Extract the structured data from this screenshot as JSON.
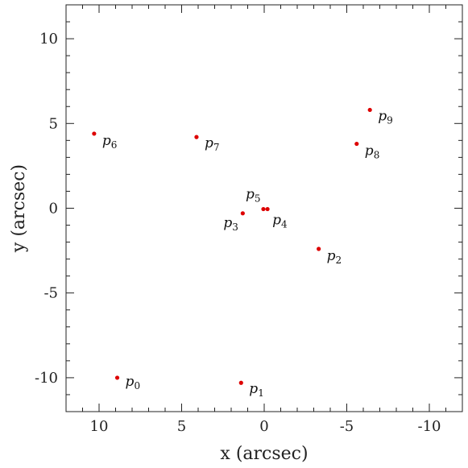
{
  "chart_data": {
    "type": "scatter",
    "xlabel": "x (arcsec)",
    "ylabel": "y (arcsec)",
    "xlim": [
      12,
      -12
    ],
    "ylim": [
      -12,
      12
    ],
    "x_ticks": [
      10,
      5,
      0,
      -5,
      -10
    ],
    "x_tick_labels": [
      "10",
      "5",
      "0",
      "-5",
      "-10"
    ],
    "y_ticks": [
      10,
      5,
      0,
      -5,
      -10
    ],
    "y_tick_labels": [
      "10",
      "5",
      "0",
      "-5",
      "-10"
    ],
    "grid": false,
    "marker_color": "#dd0000",
    "points": [
      {
        "label": "p",
        "index": "0",
        "x": 8.9,
        "y": -10.0
      },
      {
        "label": "p",
        "index": "1",
        "x": 1.4,
        "y": -10.3
      },
      {
        "label": "p",
        "index": "2",
        "x": -3.3,
        "y": -2.4
      },
      {
        "label": "p",
        "index": "3",
        "x": 1.3,
        "y": -0.3
      },
      {
        "label": "p",
        "index": "4",
        "x": -0.2,
        "y": -0.05
      },
      {
        "label": "p",
        "index": "5",
        "x": 0.05,
        "y": -0.05
      },
      {
        "label": "p",
        "index": "6",
        "x": 10.3,
        "y": 4.4
      },
      {
        "label": "p",
        "index": "7",
        "x": 4.1,
        "y": 4.2
      },
      {
        "label": "p",
        "index": "8",
        "x": -5.6,
        "y": 3.8
      },
      {
        "label": "p",
        "index": "9",
        "x": -6.4,
        "y": 5.8
      }
    ]
  }
}
